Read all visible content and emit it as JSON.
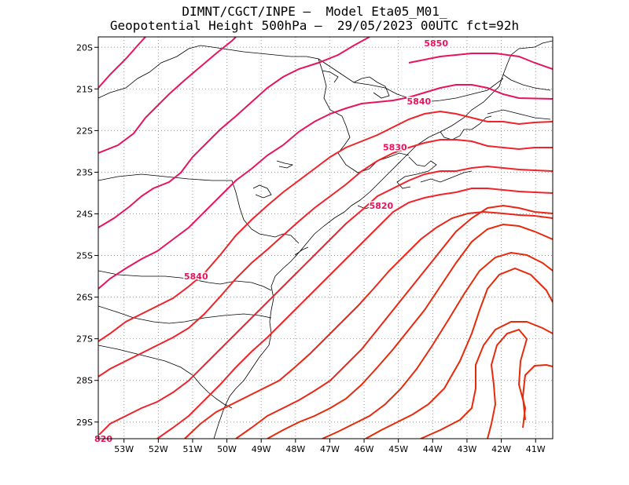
{
  "title_line1": "DIMNT/CGCT/INPE –  Model Eta05_M01_",
  "title_line2": "Geopotential Height 500hPa –  29/05/2023 00UTC fct=92h",
  "colors": {
    "low": "#e62a0a",
    "mid": "#f0222a",
    "high": "#e8145a",
    "coast": "#000000",
    "grid": "#999999"
  },
  "chart_data": {
    "type": "contour-map",
    "xlim": [
      -53.75,
      -40.5
    ],
    "ylim": [
      -29.4,
      -19.75
    ],
    "lon_ticks": [
      -53,
      -52,
      -51,
      -50,
      -49,
      -48,
      -47,
      -46,
      -45,
      -44,
      -43,
      -42,
      -41
    ],
    "lon_labels": [
      "53W",
      "52W",
      "51W",
      "50W",
      "49W",
      "48W",
      "47W",
      "46W",
      "45W",
      "44W",
      "43W",
      "42W",
      "41W"
    ],
    "lat_ticks": [
      -20,
      -21,
      -22,
      -23,
      -24,
      -25,
      -26,
      -27,
      -28,
      -29
    ],
    "lat_labels": [
      "20S",
      "21S",
      "22S",
      "23S",
      "24S",
      "25S",
      "26S",
      "27S",
      "28S",
      "29S"
    ],
    "grid": true,
    "contour_labels": [
      {
        "text": "5850",
        "lon": -43.9,
        "lat": -19.9
      },
      {
        "text": "5840",
        "lon": -44.4,
        "lat": -21.3
      },
      {
        "text": "5830",
        "lon": -45.1,
        "lat": -22.4
      },
      {
        "text": "5820",
        "lon": -45.5,
        "lat": -23.8
      },
      {
        "text": "5840",
        "lon": -50.9,
        "lat": -25.5
      },
      {
        "text": "820",
        "lon": -53.6,
        "lat": -29.4
      }
    ]
  }
}
